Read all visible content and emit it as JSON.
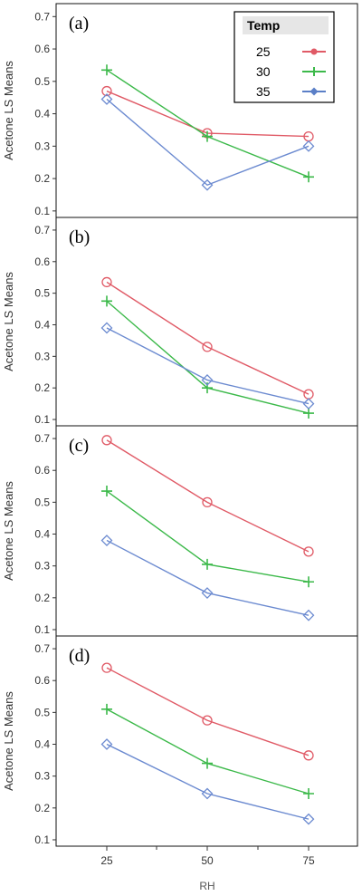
{
  "chart_data": [
    {
      "type": "line",
      "panel_label": "(a)",
      "ylabel": "Acetone LS Means",
      "x": [
        25,
        50,
        75
      ],
      "ylim": [
        0.08,
        0.74
      ],
      "yticks": [
        "0.1",
        "0.2",
        "0.3",
        "0.4",
        "0.5",
        "0.6",
        "0.7"
      ],
      "series": [
        {
          "name": "25",
          "values": [
            0.47,
            0.34,
            0.33
          ]
        },
        {
          "name": "30",
          "values": [
            0.535,
            0.33,
            0.205
          ]
        },
        {
          "name": "35",
          "values": [
            0.445,
            0.18,
            0.3
          ]
        }
      ]
    },
    {
      "type": "line",
      "panel_label": "(b)",
      "ylabel": "Acetone LS Means",
      "x": [
        25,
        50,
        75
      ],
      "ylim": [
        0.08,
        0.74
      ],
      "yticks": [
        "0.1",
        "0.2",
        "0.3",
        "0.4",
        "0.5",
        "0.6",
        "0.7"
      ],
      "series": [
        {
          "name": "25",
          "values": [
            0.535,
            0.33,
            0.18
          ]
        },
        {
          "name": "30",
          "values": [
            0.475,
            0.2,
            0.12
          ]
        },
        {
          "name": "35",
          "values": [
            0.39,
            0.225,
            0.15
          ]
        }
      ]
    },
    {
      "type": "line",
      "panel_label": "(c)",
      "ylabel": "Acetone LS Means",
      "x": [
        25,
        50,
        75
      ],
      "ylim": [
        0.08,
        0.74
      ],
      "yticks": [
        "0.1",
        "0.2",
        "0.3",
        "0.4",
        "0.5",
        "0.6",
        "0.7"
      ],
      "series": [
        {
          "name": "25",
          "values": [
            0.695,
            0.5,
            0.345
          ]
        },
        {
          "name": "30",
          "values": [
            0.535,
            0.305,
            0.25
          ]
        },
        {
          "name": "35",
          "values": [
            0.38,
            0.215,
            0.145
          ]
        }
      ]
    },
    {
      "type": "line",
      "panel_label": "(d)",
      "ylabel": "Acetone LS Means",
      "xlabel": "RH",
      "x": [
        25,
        50,
        75
      ],
      "xticks": [
        "25",
        "50",
        "75"
      ],
      "ylim": [
        0.08,
        0.74
      ],
      "yticks": [
        "0.1",
        "0.2",
        "0.3",
        "0.4",
        "0.5",
        "0.6",
        "0.7"
      ],
      "series": [
        {
          "name": "25",
          "values": [
            0.64,
            0.475,
            0.365
          ]
        },
        {
          "name": "30",
          "values": [
            0.51,
            0.34,
            0.245
          ]
        },
        {
          "name": "35",
          "values": [
            0.4,
            0.245,
            0.165
          ]
        }
      ]
    }
  ],
  "legend": {
    "title": "Temp",
    "placement": "top-right of panel (a)",
    "entries": [
      {
        "label": "25",
        "color": "#e05a66",
        "marker": "circle"
      },
      {
        "label": "30",
        "color": "#3cb94a",
        "marker": "plus"
      },
      {
        "label": "35",
        "color": "#5b7fc7",
        "marker": "diamond"
      }
    ]
  },
  "series_styles": [
    {
      "color": "#e05a66",
      "marker": "circle"
    },
    {
      "color": "#3cb94a",
      "marker": "plus"
    },
    {
      "color": "#6b8ad0",
      "marker": "diamond"
    }
  ]
}
